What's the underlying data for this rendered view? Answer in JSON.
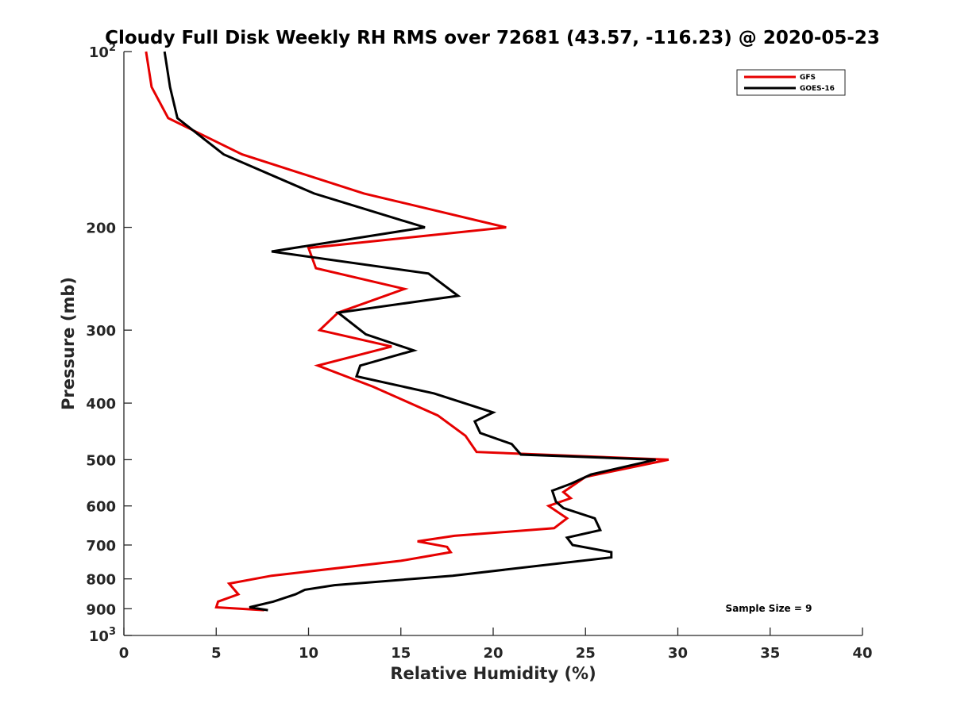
{
  "chart_data": {
    "type": "line",
    "title": "Cloudy Full Disk Weekly RH RMS over 72681 (43.57, -116.23) @ 2020-05-23",
    "xlabel": "Relative Humidity (%)",
    "ylabel": "Pressure (mb)",
    "xlim": [
      0,
      40
    ],
    "ylim": [
      100,
      1000
    ],
    "yscale": "log",
    "y_reversed": true,
    "grid": false,
    "legend_position": "top-right",
    "x_ticks": [
      0,
      5,
      10,
      15,
      20,
      25,
      30,
      35,
      40
    ],
    "x_tick_labels": [
      "0",
      "5",
      "10",
      "15",
      "20",
      "25",
      "30",
      "35",
      "40"
    ],
    "y_ticks": [
      100,
      200,
      300,
      400,
      500,
      600,
      700,
      800,
      900,
      1000
    ],
    "y_tick_labels": [
      {
        "base": "10",
        "exp": "2"
      },
      {
        "base": "200",
        "exp": ""
      },
      {
        "base": "300",
        "exp": ""
      },
      {
        "base": "400",
        "exp": ""
      },
      {
        "base": "500",
        "exp": ""
      },
      {
        "base": "600",
        "exp": ""
      },
      {
        "base": "700",
        "exp": ""
      },
      {
        "base": "800",
        "exp": ""
      },
      {
        "base": "900",
        "exp": ""
      },
      {
        "base": "10",
        "exp": "3"
      }
    ],
    "annotation": "Sample Size = 9",
    "series": [
      {
        "name": "GFS",
        "color": "#e60000",
        "points": [
          [
            1.2,
            100
          ],
          [
            1.5,
            115
          ],
          [
            2.4,
            130
          ],
          [
            6.4,
            150
          ],
          [
            13.0,
            175
          ],
          [
            20.7,
            200
          ],
          [
            10.0,
            217
          ],
          [
            10.4,
            235
          ],
          [
            15.2,
            255
          ],
          [
            11.6,
            280
          ],
          [
            10.6,
            300
          ],
          [
            14.5,
            320
          ],
          [
            10.5,
            345
          ],
          [
            13.5,
            375
          ],
          [
            17.0,
            420
          ],
          [
            18.5,
            455
          ],
          [
            19.1,
            485
          ],
          [
            29.5,
            500
          ],
          [
            25.0,
            535
          ],
          [
            23.8,
            568
          ],
          [
            24.2,
            582
          ],
          [
            23.0,
            600
          ],
          [
            24.0,
            630
          ],
          [
            23.3,
            655
          ],
          [
            17.9,
            675
          ],
          [
            15.9,
            690
          ],
          [
            17.5,
            705
          ],
          [
            17.7,
            720
          ],
          [
            15.0,
            745
          ],
          [
            8.0,
            790
          ],
          [
            5.7,
            815
          ],
          [
            6.2,
            850
          ],
          [
            5.1,
            875
          ],
          [
            5.0,
            895
          ],
          [
            7.6,
            905
          ]
        ]
      },
      {
        "name": "GOES-16",
        "color": "#000000",
        "points": [
          [
            2.2,
            100
          ],
          [
            2.5,
            115
          ],
          [
            2.9,
            130
          ],
          [
            5.4,
            150
          ],
          [
            10.3,
            175
          ],
          [
            16.3,
            200
          ],
          [
            8.0,
            220
          ],
          [
            16.5,
            240
          ],
          [
            18.1,
            262
          ],
          [
            11.6,
            280
          ],
          [
            13.1,
            305
          ],
          [
            15.7,
            325
          ],
          [
            12.8,
            345
          ],
          [
            12.6,
            360
          ],
          [
            16.8,
            385
          ],
          [
            20.0,
            415
          ],
          [
            19.0,
            430
          ],
          [
            19.3,
            450
          ],
          [
            21.0,
            470
          ],
          [
            21.5,
            490
          ],
          [
            28.8,
            500
          ],
          [
            25.3,
            530
          ],
          [
            24.2,
            550
          ],
          [
            23.2,
            565
          ],
          [
            23.4,
            590
          ],
          [
            23.8,
            605
          ],
          [
            25.5,
            630
          ],
          [
            25.8,
            660
          ],
          [
            24.0,
            680
          ],
          [
            24.3,
            700
          ],
          [
            26.4,
            720
          ],
          [
            26.4,
            735
          ],
          [
            17.8,
            790
          ],
          [
            11.4,
            820
          ],
          [
            9.8,
            835
          ],
          [
            9.3,
            850
          ],
          [
            8.1,
            875
          ],
          [
            6.8,
            895
          ],
          [
            7.8,
            905
          ]
        ]
      }
    ]
  }
}
